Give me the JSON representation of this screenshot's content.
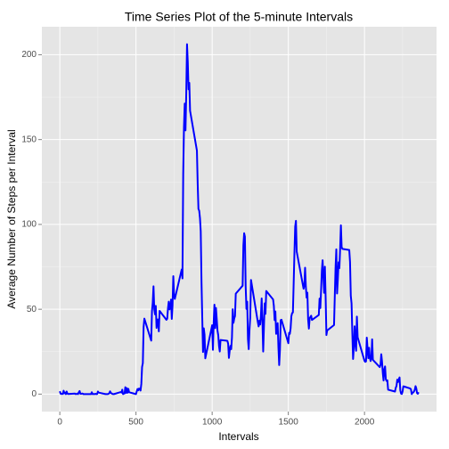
{
  "chart_data": {
    "type": "line",
    "title": "Time Series Plot of the 5-minute Intervals",
    "x_label": "Intervals",
    "y_label": "Average Number of Steps per Interval",
    "color": "#0000ff",
    "grid": true,
    "xlim": [
      -117.75,
      2472.75
    ],
    "xticks": [
      0,
      500,
      1000,
      1500,
      2000
    ],
    "xminorticks": [
      250,
      750,
      1250,
      1750,
      2250
    ],
    "ylim": [
      -10.3,
      216.5
    ],
    "yticks": [
      0,
      50,
      100,
      150,
      200
    ],
    "yminorticks": [
      25,
      75,
      125,
      175
    ],
    "x": [
      0,
      5,
      10,
      15,
      20,
      25,
      30,
      35,
      40,
      45,
      50,
      55,
      100,
      105,
      110,
      115,
      120,
      125,
      130,
      135,
      140,
      145,
      150,
      155,
      200,
      205,
      210,
      215,
      220,
      225,
      230,
      235,
      240,
      245,
      250,
      255,
      300,
      305,
      310,
      315,
      320,
      325,
      330,
      335,
      340,
      345,
      350,
      355,
      400,
      405,
      410,
      415,
      420,
      425,
      430,
      435,
      440,
      445,
      450,
      455,
      500,
      505,
      510,
      515,
      520,
      525,
      530,
      535,
      540,
      545,
      550,
      555,
      600,
      605,
      610,
      615,
      620,
      625,
      630,
      635,
      640,
      645,
      650,
      655,
      700,
      705,
      710,
      715,
      720,
      725,
      730,
      735,
      740,
      745,
      750,
      755,
      800,
      805,
      810,
      815,
      820,
      825,
      830,
      835,
      840,
      845,
      850,
      855,
      900,
      905,
      910,
      915,
      920,
      925,
      930,
      935,
      940,
      945,
      950,
      955,
      1000,
      1005,
      1010,
      1015,
      1020,
      1025,
      1030,
      1035,
      1040,
      1045,
      1050,
      1055,
      1100,
      1105,
      1110,
      1115,
      1120,
      1125,
      1130,
      1135,
      1140,
      1145,
      1150,
      1155,
      1200,
      1205,
      1210,
      1215,
      1220,
      1225,
      1230,
      1235,
      1240,
      1245,
      1250,
      1255,
      1300,
      1305,
      1310,
      1315,
      1320,
      1325,
      1330,
      1335,
      1340,
      1345,
      1350,
      1355,
      1400,
      1405,
      1410,
      1415,
      1420,
      1425,
      1430,
      1435,
      1440,
      1445,
      1450,
      1455,
      1500,
      1505,
      1510,
      1515,
      1520,
      1525,
      1530,
      1535,
      1540,
      1545,
      1550,
      1555,
      1600,
      1605,
      1610,
      1615,
      1620,
      1625,
      1630,
      1635,
      1640,
      1645,
      1650,
      1655,
      1700,
      1705,
      1710,
      1715,
      1720,
      1725,
      1730,
      1735,
      1740,
      1745,
      1750,
      1755,
      1800,
      1805,
      1810,
      1815,
      1820,
      1825,
      1830,
      1835,
      1840,
      1845,
      1850,
      1855,
      1900,
      1905,
      1910,
      1915,
      1920,
      1925,
      1930,
      1935,
      1940,
      1945,
      1950,
      1955,
      2000,
      2005,
      2010,
      2015,
      2020,
      2025,
      2030,
      2035,
      2040,
      2045,
      2050,
      2055,
      2100,
      2105,
      2110,
      2115,
      2120,
      2125,
      2130,
      2135,
      2140,
      2145,
      2150,
      2155,
      2200,
      2205,
      2210,
      2215,
      2220,
      2225,
      2230,
      2235,
      2240,
      2245,
      2250,
      2255,
      2300,
      2305,
      2310,
      2315,
      2320,
      2325,
      2330,
      2335,
      2340,
      2345,
      2350,
      2355
    ],
    "values": [
      1.7,
      0.3,
      0.1,
      0.2,
      0.1,
      2,
      0.5,
      0.9,
      0,
      1.5,
      0.3,
      0.1,
      0.3,
      0,
      0.1,
      0.3,
      0,
      1.1,
      1.8,
      0.2,
      0.2,
      0.3,
      0.3,
      0,
      0,
      0,
      1.1,
      0,
      0,
      0.1,
      0,
      0.2,
      0,
      0,
      1.5,
      0.9,
      0,
      0,
      0,
      0,
      0.2,
      0.6,
      1.6,
      0.6,
      0.5,
      0.1,
      0,
      0,
      1.2,
      0.9,
      2.6,
      0,
      0.3,
      0.4,
      4.1,
      0.7,
      3.5,
      0.8,
      3.1,
      1.1,
      0,
      1.6,
      3,
      2.2,
      3.3,
      3,
      2.1,
      6,
      16,
      18.3,
      39.5,
      44.5,
      31.5,
      49,
      53.8,
      63.5,
      50,
      47,
      52,
      39,
      44,
      44,
      37,
      49,
      43.8,
      44.4,
      50.5,
      54.5,
      49.9,
      50.9,
      55.7,
      44.3,
      52.3,
      69.5,
      57.8,
      56.1,
      73.4,
      68.2,
      129.4,
      157.5,
      171.2,
      155.4,
      177.3,
      206.2,
      195.9,
      179.6,
      183.4,
      167,
      143.5,
      124,
      109.1,
      108.1,
      103.7,
      95.97,
      66.2,
      45.2,
      24.8,
      38.8,
      34.98,
      21.1,
      40.6,
      26.1,
      42.4,
      52.7,
      38.9,
      50.8,
      44.3,
      37.4,
      34.7,
      28.3,
      25.1,
      31.9,
      31.4,
      29.7,
      21.3,
      25.5,
      28.4,
      26.5,
      33.4,
      50,
      42,
      44.6,
      46,
      59.2,
      63.9,
      87.7,
      94.8,
      92.8,
      63.4,
      50.2,
      54.5,
      32.4,
      26.5,
      37.7,
      45.1,
      67.3,
      42.3,
      39.9,
      43.3,
      40.98,
      46.2,
      56.4,
      42.8,
      25.1,
      39.96,
      53.5,
      47.3,
      60.8,
      55.8,
      51.96,
      43.6,
      48.7,
      35.5,
      37.5,
      41.8,
      27.5,
      17.1,
      26.1,
      43.6,
      43.8,
      30,
      36.1,
      35.5,
      38.8,
      45.96,
      47.8,
      48.1,
      65.3,
      82.9,
      98.7,
      102.1,
      83.96,
      62.1,
      64.1,
      74.5,
      63.2,
      56.9,
      59.8,
      43.9,
      38.6,
      44.7,
      45.5,
      46.2,
      43.7,
      46.6,
      56.3,
      50.7,
      61.2,
      72.7,
      78.9,
      68.9,
      59.7,
      75.1,
      56.5,
      34.8,
      37.5,
      40.7,
      58,
      74.7,
      85.3,
      59.3,
      67.8,
      77.7,
      74.2,
      85.3,
      99.5,
      86.6,
      85.6,
      84.9,
      77.8,
      58,
      53.4,
      36.3,
      20.7,
      27.4,
      40,
      30.2,
      25.5,
      45.7,
      33.5,
      19.6,
      19,
      19.3,
      33.3,
      26.8,
      21.2,
      27.3,
      21.3,
      19.5,
      21.3,
      32.3,
      20.2,
      15.9,
      17.2,
      23.5,
      19.2,
      12.5,
      8,
      14.7,
      16.3,
      8.7,
      7.8,
      8.1,
      2.6,
      1.5,
      3.7,
      4.8,
      8.5,
      7.1,
      8.7,
      9.8,
      2.2,
      0.3,
      0.1,
      1.6,
      4.6,
      3.3,
      2.8,
      0,
      0.8,
      0.96,
      1.6,
      2.6,
      4.7,
      3.3,
      0.6,
      0.2,
      1.1
    ]
  }
}
